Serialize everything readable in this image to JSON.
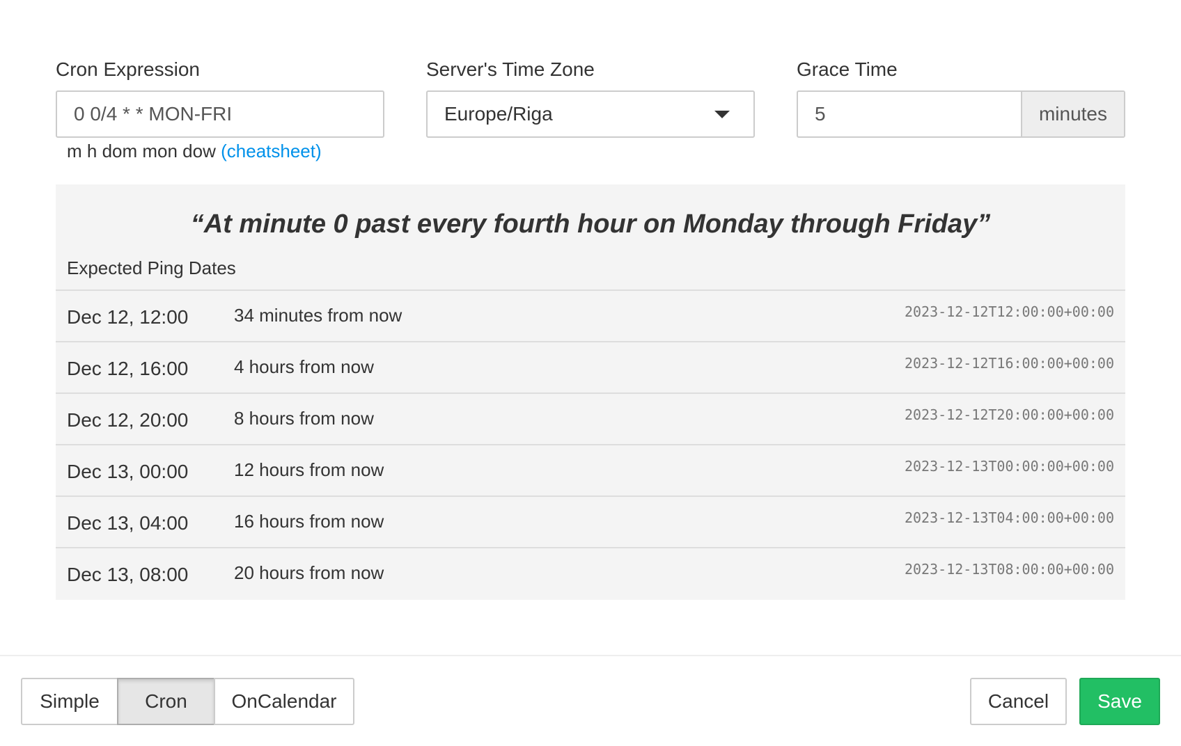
{
  "cron": {
    "label": "Cron Expression",
    "value": "0 0/4 * * MON-FRI",
    "help": "m h dom mon dow",
    "cheatsheet": "(cheatsheet)"
  },
  "tz": {
    "label": "Server's Time Zone",
    "value": "Europe/Riga"
  },
  "grace": {
    "label": "Grace Time",
    "value": "5",
    "unit": "minutes"
  },
  "preview": {
    "description": "“At minute 0 past every fourth hour on Monday through Friday”",
    "heading": "Expected Ping Dates",
    "rows": [
      {
        "date": "Dec 12, 12:00",
        "relative": "34 minutes from now",
        "iso": "2023-12-12T12:00:00+00:00"
      },
      {
        "date": "Dec 12, 16:00",
        "relative": "4 hours from now",
        "iso": "2023-12-12T16:00:00+00:00"
      },
      {
        "date": "Dec 12, 20:00",
        "relative": "8 hours from now",
        "iso": "2023-12-12T20:00:00+00:00"
      },
      {
        "date": "Dec 13, 00:00",
        "relative": "12 hours from now",
        "iso": "2023-12-13T00:00:00+00:00"
      },
      {
        "date": "Dec 13, 04:00",
        "relative": "16 hours from now",
        "iso": "2023-12-13T04:00:00+00:00"
      },
      {
        "date": "Dec 13, 08:00",
        "relative": "20 hours from now",
        "iso": "2023-12-13T08:00:00+00:00"
      }
    ]
  },
  "footer": {
    "modes": [
      "Simple",
      "Cron",
      "OnCalendar"
    ],
    "active_mode": "Cron",
    "cancel": "Cancel",
    "save": "Save"
  },
  "colors": {
    "save": "#22bf64",
    "link": "#0091ea",
    "panel": "#f4f4f4"
  }
}
